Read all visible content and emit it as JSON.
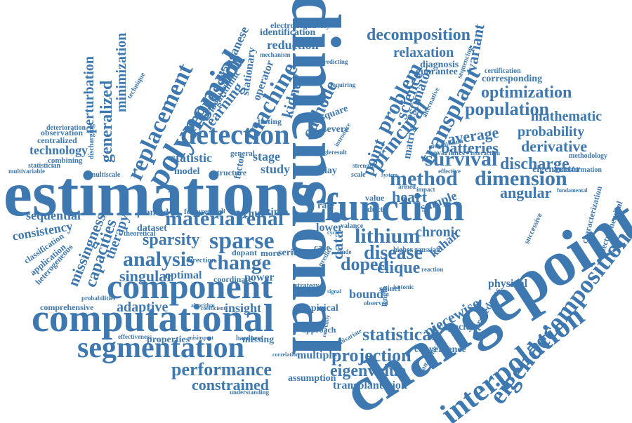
{
  "word_color": "#3e78b0",
  "background": "#ffffff",
  "words": [
    "dimensional",
    "changepoint",
    "estimations",
    "function",
    "component",
    "computational",
    "interpolation",
    "eigendecomposition",
    "segmentation",
    "detection",
    "polynomial",
    "replacement",
    "sparse",
    "material",
    "renal",
    "change",
    "analysis",
    "method",
    "dimension",
    "transplant",
    "principal",
    "machine",
    "problem",
    "survival",
    "discharge",
    "population",
    "optimization",
    "decomposition",
    "generalized",
    "minimization",
    "perturbation",
    "lithium",
    "disease",
    "doped",
    "statistical",
    "projection",
    "eigenvalue",
    "transplantation",
    "performance",
    "constrained",
    "regression",
    "learning",
    "manganese",
    "cathode",
    "science",
    "estimator",
    "variant",
    "kidney",
    "average",
    "batteries",
    "derivative",
    "mathematic",
    "probability",
    "sparsity",
    "singular",
    "adaptive",
    "comprehensive",
    "technology",
    "consistency",
    "sequential",
    "capacities",
    "missingness",
    "therapy",
    "heart",
    "clique",
    "piecewise",
    "angular",
    "chronic",
    "kahan",
    "relaxation",
    "diagnosis",
    "guarantee",
    "corresponding",
    "certification",
    "electronegativity",
    "identification",
    "reduction",
    "stationary",
    "operator",
    "logarithmic",
    "statistic",
    "stage",
    "study",
    "insight",
    "power",
    "bound",
    "sample",
    "physical",
    "capacity",
    "procedures",
    "convergence",
    "eigenvector",
    "characterization",
    "electrochemical",
    "successive",
    "covariance",
    "interaction",
    "methodology",
    "transformation",
    "planted",
    "dataset",
    "optimal",
    "series",
    "schur",
    "time",
    "sequencing",
    "matrix",
    "data",
    "point",
    "spinel",
    "valance",
    "square",
    "severe",
    "multiple",
    "approach",
    "empirical",
    "missing",
    "hardness",
    "properties",
    "assumption",
    "understanding",
    "deterioration",
    "observation",
    "centralized",
    "combining",
    "statistician",
    "multivariable",
    "multiscale",
    "discharging",
    "classification",
    "application",
    "heterogeneous",
    "probabilities",
    "effectiveness",
    "theoretical",
    "direction",
    "coordinate",
    "model",
    "structure",
    "factor",
    "general",
    "testing",
    "mechanism",
    "predicting",
    "requiring",
    "lower",
    "rate",
    "delay",
    "case",
    "more",
    "strategy",
    "length",
    "value",
    "duct",
    "armed",
    "impact",
    "fundamental",
    "gaussian",
    "higher",
    "reaction",
    "effective",
    "observed",
    "isotonic",
    "technique",
    "cobalt",
    "feature",
    "dopant",
    "term",
    "nevanlinna",
    "alternative",
    "anatomical",
    "univariate",
    "correlation",
    "misinspect",
    "algorithm",
    "coefficient",
    "trade",
    "strength",
    "system",
    "scale",
    "cycle",
    "result",
    "single",
    "introduce",
    "mortality",
    "predict",
    "signal"
  ]
}
